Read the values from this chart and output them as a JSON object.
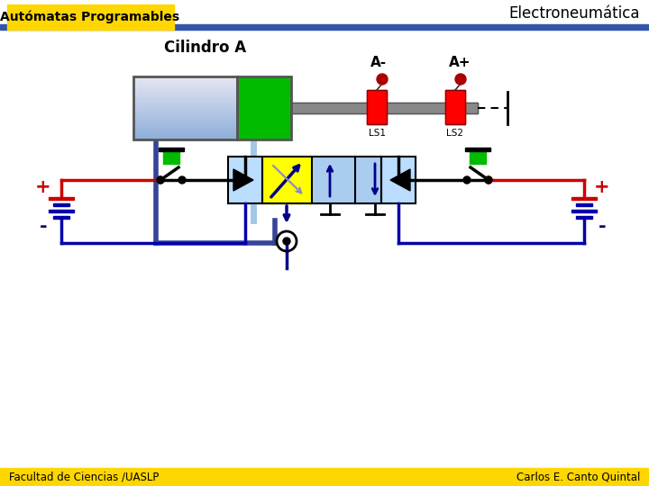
{
  "title": "Electroneumática",
  "subtitle": "Autómatas Programables",
  "cylinder_label": "Cilindro A",
  "label_Aminus": "A-",
  "label_Aplus": "A+",
  "label_LS1": "LS1",
  "label_LS2": "LS2",
  "footer_left": "Facultad de Ciencias /UASLP",
  "footer_right": "Carlos E. Canto Quintal",
  "bg_color": "#ffffff",
  "header_bar_color": "#3355AA",
  "subtitle_bg": "#FFD700",
  "footer_bar_color": "#FFD700",
  "blue_dark": "#00008B",
  "blue_wire": "#0000AA",
  "light_blue_tube": "#A0C8E8",
  "dark_blue_tube": "#334499",
  "green_bright": "#00BB00",
  "red_bright": "#FF0000",
  "red_dark": "#CC0000",
  "yellow": "#FFFF00",
  "gray": "#888888",
  "black": "#000000",
  "valve_blue": "#AACCEE",
  "figsize": [
    7.2,
    5.4
  ],
  "dpi": 100
}
